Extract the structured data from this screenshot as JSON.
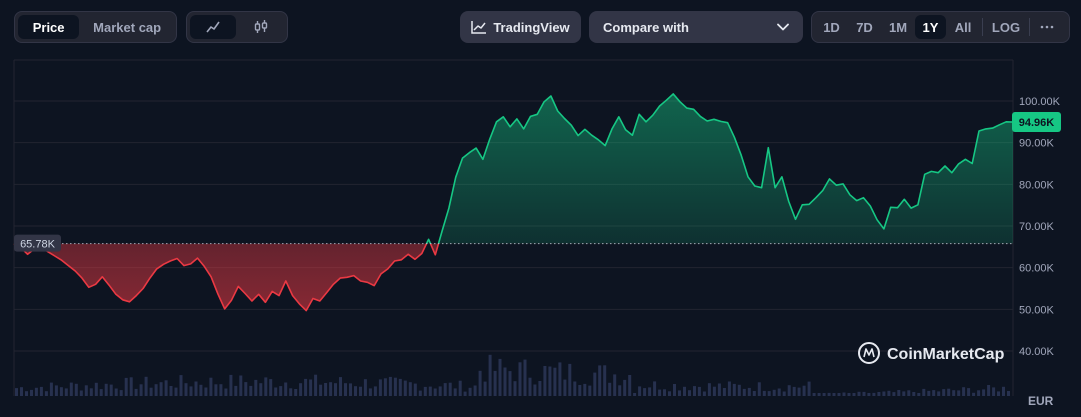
{
  "toolbar": {
    "metric_tabs": [
      {
        "label": "Price",
        "active": true
      },
      {
        "label": "Market cap",
        "active": false
      }
    ],
    "chart_type_icons": [
      {
        "icon": "line-chart-icon",
        "active": true
      },
      {
        "icon": "candlestick-icon",
        "active": false
      }
    ],
    "tradingview_label": "TradingView",
    "compare_label": "Compare with",
    "ranges": [
      {
        "label": "1D",
        "active": false
      },
      {
        "label": "7D",
        "active": false
      },
      {
        "label": "1M",
        "active": false
      },
      {
        "label": "1Y",
        "active": true
      },
      {
        "label": "All",
        "active": false
      }
    ],
    "log_label": "LOG",
    "more_icon": "more-horizontal-icon"
  },
  "watermark": "CoinMarketCap",
  "currency": "EUR",
  "colors": {
    "background": "#0d1421",
    "up": "#16c784",
    "down": "#ea3943",
    "grid": "#222531"
  },
  "chart_data": {
    "type": "line",
    "y_ticks": [
      "40.00K",
      "50.00K",
      "60.00K",
      "70.00K",
      "80.00K",
      "90.00K",
      "100.00K"
    ],
    "y_tick_values": [
      40000,
      50000,
      60000,
      70000,
      80000,
      90000,
      100000
    ],
    "ylim": [
      35000,
      110000
    ],
    "baseline": 65780,
    "baseline_label": "65.78K",
    "current_price": 94960,
    "current_label": "94.96K",
    "grid": true,
    "series": [
      {
        "values": [
          65780,
          64800,
          63200,
          64500,
          65000,
          63800,
          62800,
          61800,
          60500,
          59200,
          57500,
          55300,
          56000,
          57800,
          55800,
          53600,
          52300,
          51800,
          53300,
          55000,
          57500,
          59700,
          60800,
          61600,
          62200,
          60500,
          60900,
          62300,
          60300,
          57800,
          53700,
          50100,
          52200,
          55500,
          53800,
          52000,
          53600,
          51700,
          54300,
          53300,
          56800,
          53300,
          51300,
          49700,
          52600,
          52000,
          54000,
          56000,
          57500,
          57700,
          58100,
          56800,
          56500,
          55700,
          58500,
          59700,
          61600,
          61900,
          63200,
          62000,
          63400,
          66800,
          63100,
          68800,
          74300,
          81700,
          86300,
          87600,
          88700,
          86000,
          90800,
          95000,
          96200,
          93800,
          95700,
          93300,
          96300,
          96800,
          99800,
          101200,
          97600,
          95800,
          94200,
          91700,
          93200,
          91800,
          90700,
          89300,
          93300,
          96200,
          93100,
          91800,
          96800,
          95000,
          96600,
          98800,
          100200,
          101700,
          99800,
          98300,
          98000,
          96300,
          95200,
          95600,
          95100,
          94800,
          91300,
          87000,
          81800,
          79600,
          79200,
          88800,
          79200,
          81800,
          75900,
          71600,
          75100,
          75200,
          76800,
          78500,
          81300,
          79800,
          80100,
          77500,
          76100,
          76800,
          74800,
          71500,
          69300,
          74500,
          74400,
          76400,
          74300,
          75100,
          82400,
          83100,
          82800,
          84400,
          82800,
          84900,
          86000,
          85000,
          92800,
          93300,
          93500,
          94300,
          95000,
          94960
        ]
      }
    ]
  }
}
